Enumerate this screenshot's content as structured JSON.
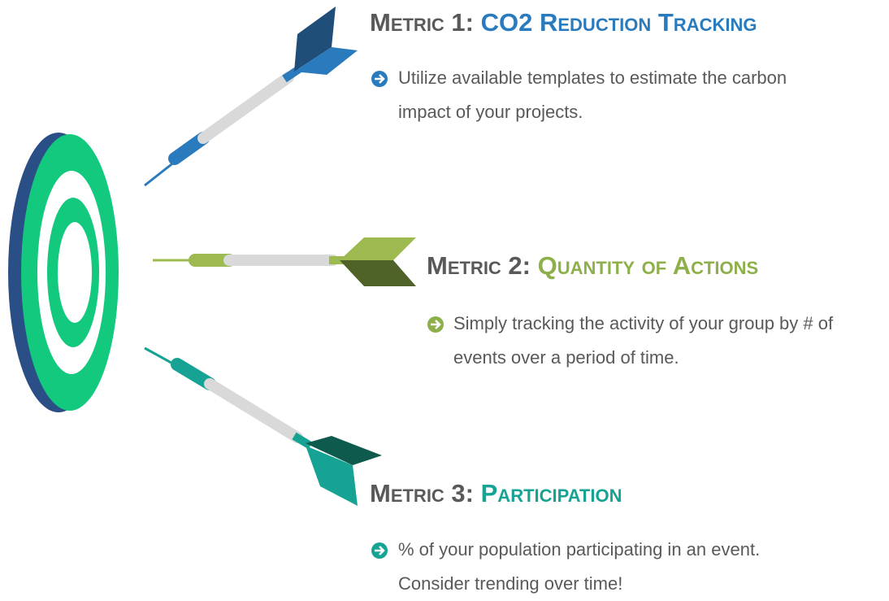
{
  "metrics": [
    {
      "label": "Metric 1:",
      "title": "CO2 Reduction Tracking",
      "description": "Utilize available templates to estimate the carbon impact of your projects."
    },
    {
      "label": "Metric 2:",
      "title": "Quantity of Actions",
      "description": "Simply tracking the activity of your group by # of events over a period of time."
    },
    {
      "label": "Metric 3:",
      "title": "Participation",
      "description": "% of your population participating in an event. Consider trending over time!"
    }
  ]
}
